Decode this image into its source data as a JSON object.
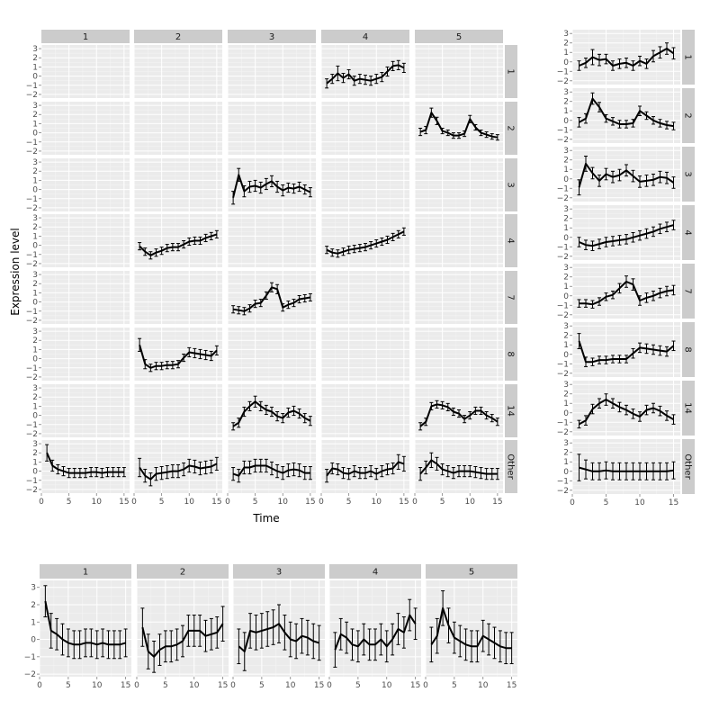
{
  "chart_data": [
    {
      "type": "line",
      "id": "main-grid",
      "xlabel": "Time",
      "ylabel": "Expression level",
      "xlim": [
        0,
        16
      ],
      "ylim": [
        -2.4,
        3.4
      ],
      "x_ticks": [
        0,
        5,
        10,
        15
      ],
      "y_ticks": [
        -2,
        -1,
        0,
        1,
        2,
        3
      ],
      "columns": [
        "1",
        "2",
        "3",
        "4",
        "5"
      ],
      "rows": [
        "1",
        "2",
        "3",
        "4",
        "7",
        "8",
        "14",
        "Other"
      ],
      "x": [
        1,
        2,
        3,
        4,
        5,
        6,
        7,
        8,
        9,
        10,
        11,
        12,
        13,
        14,
        15
      ],
      "panels": [
        {
          "col": "4",
          "row": "1",
          "values": [
            -0.8,
            -0.3,
            0.3,
            -0.2,
            0.2,
            -0.5,
            -0.3,
            -0.4,
            -0.5,
            -0.3,
            -0.1,
            0.5,
            1.1,
            1.2,
            0.9
          ],
          "errors": [
            0.5,
            0.5,
            0.8,
            0.5,
            0.5,
            0.5,
            0.5,
            0.5,
            0.5,
            0.5,
            0.5,
            0.5,
            0.5,
            0.5,
            0.5
          ]
        },
        {
          "col": "5",
          "row": "2",
          "values": [
            0.1,
            0.3,
            2.2,
            1.3,
            0.2,
            0.0,
            -0.3,
            -0.3,
            -0.1,
            1.5,
            0.6,
            0.0,
            -0.2,
            -0.4,
            -0.5
          ],
          "errors": [
            0.4,
            0.4,
            0.5,
            0.4,
            0.3,
            0.3,
            0.3,
            0.3,
            0.3,
            0.4,
            0.3,
            0.3,
            0.3,
            0.3,
            0.3
          ]
        },
        {
          "col": "3",
          "row": "3",
          "values": [
            -0.9,
            1.6,
            -0.2,
            0.3,
            0.4,
            0.2,
            0.6,
            0.9,
            0.3,
            -0.1,
            0.2,
            0.1,
            0.3,
            0.0,
            -0.3
          ],
          "errors": [
            0.7,
            0.7,
            0.6,
            0.6,
            0.6,
            0.6,
            0.6,
            0.6,
            0.6,
            0.6,
            0.5,
            0.5,
            0.5,
            0.5,
            0.5
          ]
        },
        {
          "col": "2",
          "row": "4",
          "values": [
            -0.1,
            -0.7,
            -1.1,
            -0.8,
            -0.6,
            -0.3,
            -0.2,
            -0.2,
            0.1,
            0.4,
            0.5,
            0.5,
            0.8,
            1.0,
            1.2
          ],
          "errors": [
            0.4,
            0.4,
            0.4,
            0.4,
            0.4,
            0.4,
            0.4,
            0.4,
            0.4,
            0.4,
            0.4,
            0.4,
            0.4,
            0.4,
            0.4
          ]
        },
        {
          "col": "4",
          "row": "4",
          "values": [
            -0.5,
            -0.8,
            -0.9,
            -0.7,
            -0.5,
            -0.4,
            -0.3,
            -0.2,
            0.0,
            0.2,
            0.4,
            0.6,
            0.9,
            1.2,
            1.5
          ],
          "errors": [
            0.4,
            0.4,
            0.4,
            0.4,
            0.4,
            0.4,
            0.4,
            0.4,
            0.4,
            0.4,
            0.4,
            0.4,
            0.4,
            0.4,
            0.4
          ]
        },
        {
          "col": "3",
          "row": "7",
          "values": [
            -0.8,
            -0.9,
            -1.0,
            -0.7,
            -0.2,
            -0.1,
            0.7,
            1.6,
            1.4,
            -0.6,
            -0.3,
            -0.1,
            0.3,
            0.4,
            0.5
          ],
          "errors": [
            0.4,
            0.4,
            0.4,
            0.4,
            0.4,
            0.4,
            0.4,
            0.5,
            0.5,
            0.4,
            0.4,
            0.4,
            0.4,
            0.4,
            0.4
          ]
        },
        {
          "col": "2",
          "row": "8",
          "values": [
            1.5,
            -0.6,
            -1.0,
            -0.8,
            -0.8,
            -0.7,
            -0.7,
            -0.6,
            0.1,
            0.7,
            0.6,
            0.5,
            0.4,
            0.3,
            0.9
          ],
          "errors": [
            0.7,
            0.5,
            0.4,
            0.4,
            0.4,
            0.4,
            0.4,
            0.4,
            0.4,
            0.5,
            0.5,
            0.5,
            0.5,
            0.5,
            0.5
          ]
        },
        {
          "col": "3",
          "row": "14",
          "values": [
            -1.2,
            -0.8,
            0.4,
            1.0,
            1.5,
            1.0,
            0.6,
            0.4,
            -0.1,
            -0.3,
            0.3,
            0.5,
            0.2,
            -0.3,
            -0.6
          ],
          "errors": [
            0.4,
            0.5,
            0.5,
            0.5,
            0.6,
            0.5,
            0.5,
            0.5,
            0.5,
            0.5,
            0.5,
            0.5,
            0.5,
            0.5,
            0.5
          ]
        },
        {
          "col": "5",
          "row": "14",
          "values": [
            -1.2,
            -0.7,
            1.0,
            1.2,
            1.1,
            0.9,
            0.4,
            0.2,
            -0.4,
            0.0,
            0.5,
            0.5,
            0.0,
            -0.3,
            -0.7
          ],
          "errors": [
            0.4,
            0.4,
            0.4,
            0.4,
            0.4,
            0.4,
            0.4,
            0.4,
            0.4,
            0.4,
            0.4,
            0.4,
            0.4,
            0.4,
            0.4
          ]
        },
        {
          "col": "1",
          "row": "Other",
          "values": [
            2.0,
            0.6,
            0.2,
            0.0,
            -0.2,
            -0.2,
            -0.2,
            -0.2,
            -0.1,
            -0.1,
            -0.2,
            -0.1,
            -0.1,
            -0.1,
            -0.1
          ],
          "errors": [
            0.9,
            0.6,
            0.5,
            0.5,
            0.5,
            0.5,
            0.5,
            0.5,
            0.5,
            0.5,
            0.5,
            0.5,
            0.5,
            0.5,
            0.5
          ]
        },
        {
          "col": "2",
          "row": "Other",
          "values": [
            0.4,
            -0.5,
            -0.9,
            -0.3,
            -0.2,
            -0.1,
            0.0,
            0.0,
            0.2,
            0.6,
            0.5,
            0.3,
            0.4,
            0.5,
            0.8
          ],
          "errors": [
            1.0,
            0.7,
            0.7,
            0.7,
            0.7,
            0.7,
            0.7,
            0.7,
            0.7,
            0.7,
            0.7,
            0.7,
            0.7,
            0.7,
            0.7
          ]
        },
        {
          "col": "3",
          "row": "Other",
          "values": [
            -0.3,
            -0.5,
            0.4,
            0.4,
            0.6,
            0.6,
            0.6,
            0.3,
            0.0,
            -0.2,
            0.1,
            0.2,
            0.1,
            -0.2,
            -0.2
          ],
          "errors": [
            0.7,
            0.7,
            0.7,
            0.7,
            0.7,
            0.7,
            0.7,
            0.7,
            0.7,
            0.7,
            0.7,
            0.7,
            0.7,
            0.7,
            0.7
          ]
        },
        {
          "col": "4",
          "row": "Other",
          "values": [
            -0.5,
            0.3,
            0.2,
            -0.2,
            -0.3,
            0.0,
            -0.2,
            -0.2,
            0.0,
            -0.3,
            0.0,
            0.2,
            0.3,
            1.0,
            0.8
          ],
          "errors": [
            0.7,
            0.6,
            0.6,
            0.6,
            0.6,
            0.6,
            0.6,
            0.6,
            0.6,
            0.6,
            0.6,
            0.6,
            0.6,
            0.8,
            0.8
          ]
        },
        {
          "col": "5",
          "row": "Other",
          "values": [
            -0.3,
            0.4,
            1.2,
            0.8,
            0.2,
            0.0,
            -0.2,
            0.0,
            0.0,
            0.0,
            -0.1,
            -0.2,
            -0.3,
            -0.3,
            -0.3
          ],
          "errors": [
            0.7,
            0.7,
            0.8,
            0.7,
            0.6,
            0.6,
            0.6,
            0.6,
            0.6,
            0.6,
            0.6,
            0.6,
            0.6,
            0.6,
            0.6
          ]
        }
      ]
    },
    {
      "type": "line",
      "id": "right-column",
      "xlim": [
        0,
        16
      ],
      "ylim": [
        -2.4,
        3.4
      ],
      "x_ticks": [
        0,
        5,
        10,
        15
      ],
      "y_ticks": [
        -2,
        -1,
        0,
        1,
        2,
        3
      ],
      "rows": [
        "1",
        "2",
        "3",
        "4",
        "7",
        "8",
        "14",
        "Other"
      ],
      "x": [
        1,
        2,
        3,
        4,
        5,
        6,
        7,
        8,
        9,
        10,
        11,
        12,
        13,
        14,
        15
      ],
      "panels": [
        {
          "row": "1",
          "values": [
            -0.4,
            -0.1,
            0.5,
            0.2,
            0.3,
            -0.4,
            -0.2,
            -0.1,
            -0.4,
            0.1,
            -0.2,
            0.6,
            1.0,
            1.4,
            0.9
          ],
          "errors": [
            0.5,
            0.5,
            0.8,
            0.6,
            0.5,
            0.5,
            0.5,
            0.5,
            0.5,
            0.5,
            0.5,
            0.6,
            0.6,
            0.6,
            0.6
          ]
        },
        {
          "row": "2",
          "values": [
            -0.2,
            0.2,
            2.3,
            1.4,
            0.2,
            -0.1,
            -0.4,
            -0.4,
            -0.3,
            1.0,
            0.5,
            0.0,
            -0.3,
            -0.5,
            -0.6
          ],
          "errors": [
            0.5,
            0.5,
            0.6,
            0.5,
            0.4,
            0.4,
            0.4,
            0.4,
            0.4,
            0.5,
            0.4,
            0.4,
            0.4,
            0.4,
            0.4
          ]
        },
        {
          "row": "3",
          "values": [
            -0.9,
            1.6,
            0.6,
            -0.2,
            0.5,
            0.2,
            0.4,
            0.9,
            0.3,
            -0.3,
            -0.2,
            -0.1,
            0.2,
            0.1,
            -0.4
          ],
          "errors": [
            0.8,
            0.8,
            0.6,
            0.6,
            0.6,
            0.6,
            0.6,
            0.6,
            0.6,
            0.6,
            0.6,
            0.6,
            0.6,
            0.6,
            0.6
          ]
        },
        {
          "row": "4",
          "values": [
            -0.5,
            -0.8,
            -0.9,
            -0.7,
            -0.5,
            -0.4,
            -0.3,
            -0.2,
            0.0,
            0.2,
            0.4,
            0.6,
            0.9,
            1.1,
            1.3
          ],
          "errors": [
            0.5,
            0.5,
            0.5,
            0.5,
            0.5,
            0.5,
            0.5,
            0.5,
            0.5,
            0.5,
            0.5,
            0.5,
            0.5,
            0.5,
            0.5
          ]
        },
        {
          "row": "7",
          "values": [
            -0.8,
            -0.8,
            -0.9,
            -0.6,
            -0.1,
            0.1,
            0.8,
            1.5,
            1.2,
            -0.5,
            -0.2,
            0.0,
            0.3,
            0.5,
            0.6
          ],
          "errors": [
            0.4,
            0.4,
            0.4,
            0.4,
            0.4,
            0.4,
            0.5,
            0.6,
            0.6,
            0.5,
            0.5,
            0.5,
            0.5,
            0.5,
            0.5
          ]
        },
        {
          "row": "8",
          "values": [
            1.4,
            -0.8,
            -0.8,
            -0.6,
            -0.6,
            -0.5,
            -0.5,
            -0.5,
            0.1,
            0.7,
            0.6,
            0.5,
            0.4,
            0.3,
            0.9
          ],
          "errors": [
            0.8,
            0.5,
            0.4,
            0.4,
            0.4,
            0.4,
            0.4,
            0.4,
            0.5,
            0.5,
            0.5,
            0.5,
            0.5,
            0.5,
            0.5
          ]
        },
        {
          "row": "14",
          "values": [
            -1.2,
            -0.8,
            0.4,
            1.0,
            1.4,
            1.0,
            0.6,
            0.3,
            -0.1,
            -0.4,
            0.3,
            0.5,
            0.2,
            -0.3,
            -0.7
          ],
          "errors": [
            0.4,
            0.5,
            0.5,
            0.5,
            0.6,
            0.5,
            0.5,
            0.5,
            0.5,
            0.5,
            0.5,
            0.5,
            0.5,
            0.5,
            0.5
          ]
        },
        {
          "row": "Other",
          "values": [
            0.4,
            0.2,
            0.0,
            0.0,
            0.1,
            0.0,
            0.0,
            0.0,
            0.0,
            0.0,
            0.0,
            0.0,
            0.0,
            0.0,
            0.1
          ],
          "errors": [
            1.4,
            1.0,
            0.9,
            0.9,
            0.9,
            0.9,
            0.9,
            0.9,
            0.9,
            0.9,
            0.9,
            0.9,
            0.9,
            0.9,
            0.9
          ]
        }
      ]
    },
    {
      "type": "line",
      "id": "bottom-row",
      "xlim": [
        0,
        16
      ],
      "ylim": [
        -2.15,
        3.4
      ],
      "x_ticks": [
        0,
        5,
        10,
        15
      ],
      "y_ticks": [
        -2,
        -1,
        0,
        1,
        2,
        3
      ],
      "columns": [
        "1",
        "2",
        "3",
        "4",
        "5"
      ],
      "x": [
        1,
        2,
        3,
        4,
        5,
        6,
        7,
        8,
        9,
        10,
        11,
        12,
        13,
        14,
        15
      ],
      "panels": [
        {
          "col": "1",
          "values": [
            2.2,
            0.5,
            0.3,
            0.0,
            -0.2,
            -0.3,
            -0.3,
            -0.2,
            -0.2,
            -0.3,
            -0.2,
            -0.3,
            -0.3,
            -0.3,
            -0.2
          ],
          "errors": [
            0.9,
            1.0,
            0.9,
            0.9,
            0.8,
            0.8,
            0.8,
            0.8,
            0.8,
            0.8,
            0.8,
            0.8,
            0.8,
            0.8,
            0.8
          ]
        },
        {
          "col": "2",
          "values": [
            0.7,
            -0.7,
            -1.0,
            -0.6,
            -0.4,
            -0.4,
            -0.3,
            -0.1,
            0.5,
            0.5,
            0.5,
            0.2,
            0.3,
            0.4,
            0.9
          ],
          "errors": [
            1.1,
            1.0,
            0.9,
            0.9,
            0.9,
            0.9,
            0.9,
            0.9,
            0.9,
            0.9,
            0.9,
            0.9,
            0.9,
            0.9,
            1.0
          ]
        },
        {
          "col": "3",
          "values": [
            -0.4,
            -0.7,
            0.5,
            0.4,
            0.5,
            0.6,
            0.7,
            0.9,
            0.4,
            0.0,
            -0.1,
            0.2,
            0.1,
            -0.1,
            -0.2
          ],
          "errors": [
            1.0,
            1.1,
            1.0,
            1.0,
            1.0,
            1.0,
            1.0,
            1.1,
            1.0,
            1.0,
            1.0,
            1.0,
            1.0,
            1.0,
            1.0
          ]
        },
        {
          "col": "4",
          "values": [
            -0.6,
            0.3,
            0.1,
            -0.3,
            -0.4,
            0.0,
            -0.3,
            -0.3,
            0.0,
            -0.4,
            0.0,
            0.6,
            0.4,
            1.4,
            0.9
          ],
          "errors": [
            1.0,
            0.9,
            0.9,
            0.9,
            0.9,
            0.9,
            0.9,
            0.9,
            0.9,
            0.9,
            0.9,
            0.9,
            0.9,
            0.9,
            0.9
          ]
        },
        {
          "col": "5",
          "values": [
            -0.3,
            0.2,
            1.8,
            0.8,
            0.1,
            -0.1,
            -0.3,
            -0.4,
            -0.4,
            0.2,
            0.0,
            -0.2,
            -0.4,
            -0.5,
            -0.5
          ],
          "errors": [
            1.0,
            1.0,
            1.0,
            1.0,
            0.9,
            0.9,
            0.9,
            0.9,
            0.9,
            0.9,
            0.9,
            0.9,
            0.9,
            0.9,
            0.9
          ]
        }
      ]
    }
  ]
}
